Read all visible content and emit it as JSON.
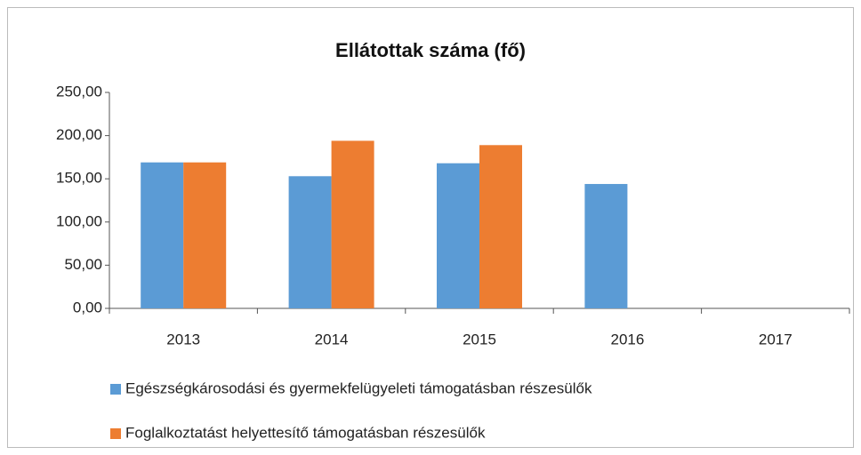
{
  "chart_data": {
    "type": "bar",
    "title": "Ellátottak száma (fő)",
    "categories": [
      "2013",
      "2014",
      "2015",
      "2016",
      "2017"
    ],
    "series": [
      {
        "name": "Egészségkárosodási és gyermekfelügyeleti támogatásban részesülők",
        "color": "#5b9bd5",
        "values": [
          169,
          153,
          168,
          144,
          null
        ]
      },
      {
        "name": "Foglalkoztatást helyettesítő támogatásban részesülők",
        "color": "#ed7d31",
        "values": [
          169,
          194,
          189,
          null,
          null
        ]
      }
    ],
    "ylim": [
      0,
      250
    ],
    "yticks": [
      {
        "value": 0,
        "label": "0,00"
      },
      {
        "value": 50,
        "label": "50,00"
      },
      {
        "value": 100,
        "label": "100,00"
      },
      {
        "value": 150,
        "label": "150,00"
      },
      {
        "value": 200,
        "label": "200,00"
      },
      {
        "value": 250,
        "label": "250,00"
      }
    ],
    "grid": false
  }
}
